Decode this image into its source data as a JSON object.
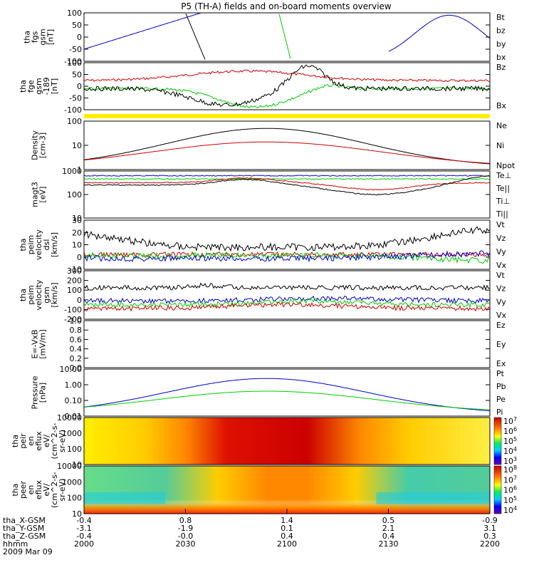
{
  "title": "P5 (TH-A) fields and on-board moments overview",
  "colors": {
    "black": "#000000",
    "red": "#cc0000",
    "green": "#00cc00",
    "blue": "#0000cc",
    "yellow": "#ffee00"
  },
  "chart_data": [
    {
      "type": "line",
      "id": "fgs",
      "ylabel": [
        "tha",
        "fgs",
        "gsm",
        "[nT]"
      ],
      "yticks": [
        "100",
        "50",
        "0",
        "-50",
        "-100"
      ],
      "ylim": [
        -100,
        100
      ],
      "legend": [
        {
          "name": "Bt",
          "color": "#000000"
        },
        {
          "name": "bz",
          "color": "#cc0000"
        },
        {
          "name": "by",
          "color": "#00cc00"
        },
        {
          "name": "bx",
          "color": "#0000cc"
        }
      ]
    },
    {
      "type": "line",
      "id": "fge",
      "ylabel": [
        "tha",
        "fge",
        "gsm",
        "-189",
        "[nT]"
      ],
      "yticks": [
        "100",
        "50",
        "0",
        "-50",
        "-100"
      ],
      "ylim": [
        -120,
        100
      ],
      "legend": [
        {
          "name": "Bz",
          "color": "#cc0000"
        },
        {
          "name": "Bx",
          "color": "#00cc00"
        }
      ]
    },
    {
      "type": "line",
      "id": "density",
      "ylabel": [
        "Density",
        "[cm-3]"
      ],
      "yticks": [
        "100",
        "10",
        "1"
      ],
      "log": true,
      "legend": [
        {
          "name": "Ne",
          "color": "#cc0000"
        },
        {
          "name": "Ni",
          "color": "#000000"
        },
        {
          "name": "Npot",
          "color": "#0000cc"
        }
      ]
    },
    {
      "type": "line",
      "id": "temp",
      "ylabel": [
        "magt3",
        "[eV]"
      ],
      "yticks": [
        "1000",
        "100",
        "10"
      ],
      "log": true,
      "legend": [
        {
          "name": "Te⊥",
          "color": "#cc0000"
        },
        {
          "name": "Te||",
          "color": "#000000"
        },
        {
          "name": "Ti⊥",
          "color": "#0000cc"
        },
        {
          "name": "Ti||",
          "color": "#00cc00"
        }
      ]
    },
    {
      "type": "line",
      "id": "peim_dsl",
      "ylabel": [
        "tha",
        "peim",
        "velocity",
        "dsl",
        "[km/s]"
      ],
      "yticks": [
        "30",
        "20",
        "10",
        "0",
        "-10"
      ],
      "ylim": [
        -12,
        30
      ],
      "legend": [
        {
          "name": "Vt",
          "color": "#000000"
        },
        {
          "name": "Vz",
          "color": "#cc0000"
        },
        {
          "name": "Vy",
          "color": "#00cc00"
        },
        {
          "name": "Vx",
          "color": "#0000cc"
        }
      ]
    },
    {
      "type": "line",
      "id": "peim_gsm",
      "ylabel": [
        "tha",
        "peim",
        "velocity",
        "gsm",
        "[km/s]"
      ],
      "yticks": [
        "300",
        "200",
        "100",
        "0",
        "-100",
        "-200"
      ],
      "ylim": [
        -230,
        300
      ],
      "legend": [
        {
          "name": "Vt",
          "color": "#000000"
        },
        {
          "name": "Vz",
          "color": "#cc0000"
        },
        {
          "name": "Vy",
          "color": "#00cc00"
        },
        {
          "name": "Vx",
          "color": "#0000cc"
        }
      ]
    },
    {
      "type": "line",
      "id": "efield",
      "ylabel": [
        "E=-VxB",
        "[mV/m]"
      ],
      "yticks": [
        "1.0",
        "0.8",
        "0.6",
        "0.4",
        "0.2",
        "0.0"
      ],
      "ylim": [
        0,
        1
      ],
      "legend": [
        {
          "name": "Ez",
          "color": "#cc0000"
        },
        {
          "name": "Ey",
          "color": "#00cc00"
        },
        {
          "name": "Ex",
          "color": "#0000cc"
        }
      ]
    },
    {
      "type": "line",
      "id": "pressure",
      "ylabel": [
        "Pressure",
        "[nPa]"
      ],
      "yticks": [
        "10.00",
        "1.00",
        "0.10",
        "0.01"
      ],
      "log": true,
      "legend": [
        {
          "name": "Pt",
          "color": "#000000"
        },
        {
          "name": "Pb",
          "color": "#cc0000"
        },
        {
          "name": "Pe",
          "color": "#00cc00"
        },
        {
          "name": "Pi",
          "color": "#0000cc"
        }
      ]
    },
    {
      "type": "heatmap",
      "id": "peir",
      "ylabel": [
        "tha",
        "peir",
        "en",
        "eflux",
        "eV/",
        "(cm^2-s-",
        "sr-eV)"
      ],
      "yticks": [
        "10000",
        "1000",
        "100",
        "10"
      ],
      "colorbar": [
        "10^7",
        "10^6",
        "10^5",
        "10^4",
        "10^3"
      ]
    },
    {
      "type": "heatmap",
      "id": "peer",
      "ylabel": [
        "tha",
        "peer",
        "en",
        "eflux",
        "eV/",
        "(cm^2-s-",
        "sr-eV)"
      ],
      "yticks": [
        "10000",
        "1000",
        "100",
        "10"
      ],
      "colorbar": [
        "10^8",
        "10^7",
        "10^6",
        "10^5",
        "10^4"
      ]
    }
  ],
  "xaxis": {
    "rows": [
      {
        "label": "tha_X-GSM",
        "values": [
          "-0.4",
          "0.8",
          "1.4",
          "0.5",
          "-0.9"
        ]
      },
      {
        "label": "tha_Y-GSM",
        "values": [
          "-3.1",
          "-1.9",
          "0.1",
          "2.1",
          "3.1"
        ]
      },
      {
        "label": "tha_Z-GSM",
        "values": [
          "-0.4",
          "-0.0",
          "0.4",
          "0.4",
          "0.3"
        ]
      },
      {
        "label": "hhmm",
        "values": [
          "2000",
          "2030",
          "2100",
          "2130",
          "2200"
        ]
      }
    ],
    "date": "2009 Mar 09"
  }
}
